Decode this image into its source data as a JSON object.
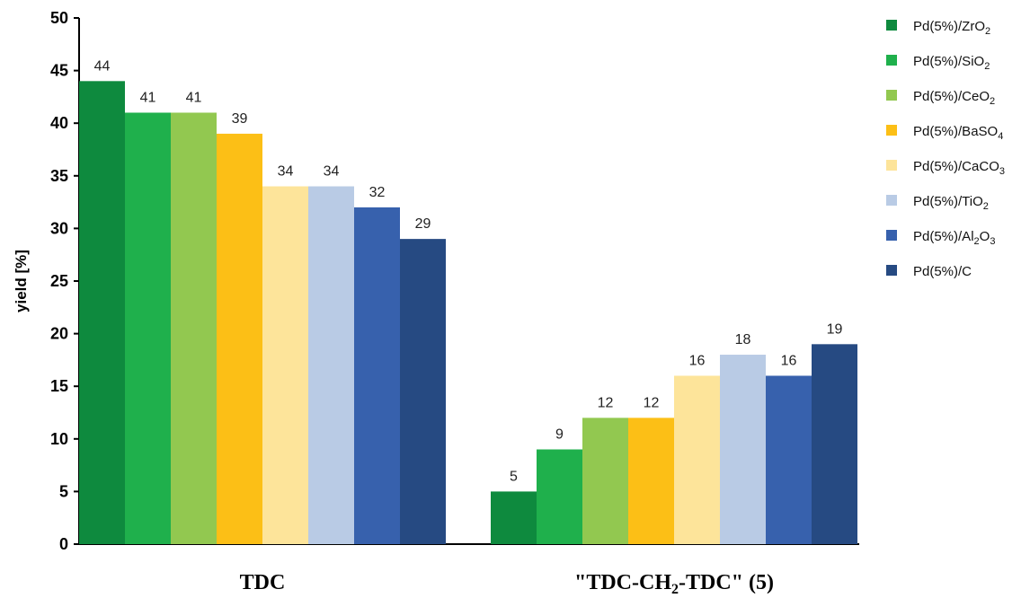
{
  "chart_data": {
    "type": "bar",
    "ylabel": "yield  [%]",
    "ylim": [
      0,
      50
    ],
    "yticks": [
      0,
      5,
      10,
      15,
      20,
      25,
      30,
      35,
      40,
      45,
      50
    ],
    "grid": false,
    "legend_position": "right",
    "categories": [
      {
        "label": "TDC",
        "sub": ""
      },
      {
        "label": "\"TDC-CH",
        "sub": "2",
        "after": "-TDC\" (5)"
      }
    ],
    "series": [
      {
        "name_pre": "Pd(5%)/ZrO",
        "name_sub": "2",
        "name_post": "",
        "color": "#0e8a3e",
        "values": [
          44,
          5
        ]
      },
      {
        "name_pre": "Pd(5%)/SiO",
        "name_sub": "2",
        "name_post": "",
        "color": "#1fb04c",
        "values": [
          41,
          9
        ]
      },
      {
        "name_pre": "Pd(5%)/CeO",
        "name_sub": "2",
        "name_post": "",
        "color": "#92c850",
        "values": [
          41,
          12
        ]
      },
      {
        "name_pre": "Pd(5%)/BaSO",
        "name_sub": "4",
        "name_post": "",
        "color": "#fcbf16",
        "values": [
          39,
          12
        ]
      },
      {
        "name_pre": "Pd(5%)/CaCO",
        "name_sub": "3",
        "name_post": "",
        "color": "#fde49a",
        "values": [
          34,
          16
        ]
      },
      {
        "name_pre": "Pd(5%)/TiO",
        "name_sub": "2",
        "name_post": "",
        "color": "#b9cbe5",
        "values": [
          34,
          18
        ]
      },
      {
        "name_pre": "Pd(5%)/Al",
        "name_sub": "2",
        "name_post": "O3",
        "color": "#3761ad",
        "values": [
          32,
          16
        ]
      },
      {
        "name_pre": "Pd(5%)/C",
        "name_sub": "",
        "name_post": "",
        "color": "#264a82",
        "values": [
          29,
          19
        ]
      }
    ]
  }
}
